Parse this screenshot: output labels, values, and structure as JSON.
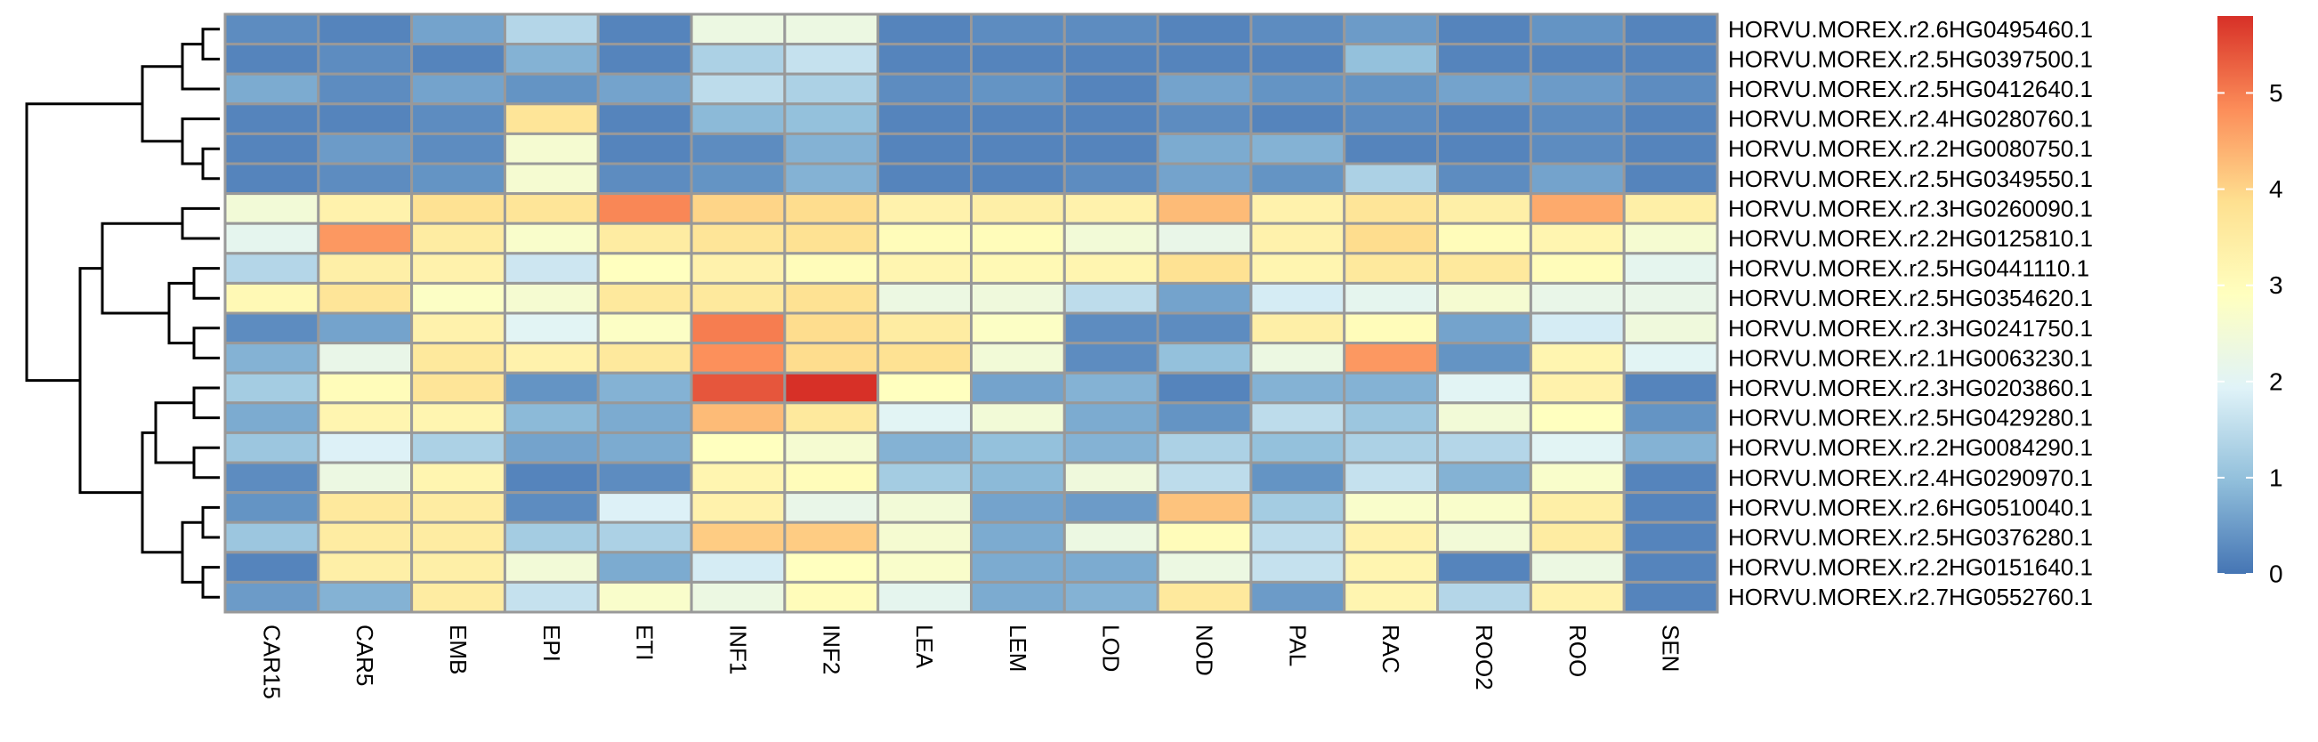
{
  "chart_data": {
    "type": "heatmap",
    "columns": [
      "CAR15",
      "CAR5",
      "EMB",
      "EPI",
      "ETI",
      "INF1",
      "INF2",
      "LEA",
      "LEM",
      "LOD",
      "NOD",
      "PAL",
      "RAC",
      "ROO2",
      "ROO",
      "SEN"
    ],
    "rows": [
      "HORVU.MOREX.r2.6HG0495460.1",
      "HORVU.MOREX.r2.5HG0397500.1",
      "HORVU.MOREX.r2.5HG0412640.1",
      "HORVU.MOREX.r2.4HG0280760.1",
      "HORVU.MOREX.r2.2HG0080750.1",
      "HORVU.MOREX.r2.5HG0349550.1",
      "HORVU.MOREX.r2.3HG0260090.1",
      "HORVU.MOREX.r2.2HG0125810.1",
      "HORVU.MOREX.r2.5HG0441110.1",
      "HORVU.MOREX.r2.5HG0354620.1",
      "HORVU.MOREX.r2.3HG0241750.1",
      "HORVU.MOREX.r2.1HG0063230.1",
      "HORVU.MOREX.r2.3HG0203860.1",
      "HORVU.MOREX.r2.5HG0429280.1",
      "HORVU.MOREX.r2.2HG0084290.1",
      "HORVU.MOREX.r2.4HG0290970.1",
      "HORVU.MOREX.r2.6HG0510040.1",
      "HORVU.MOREX.r2.5HG0376280.1",
      "HORVU.MOREX.r2.2HG0151640.1",
      "HORVU.MOREX.r2.7HG0552760.1"
    ],
    "values": [
      [
        0.3,
        0.2,
        0.6,
        1.4,
        0.2,
        2.3,
        2.3,
        0.2,
        0.3,
        0.3,
        0.2,
        0.3,
        0.5,
        0.2,
        0.4,
        0.2
      ],
      [
        0.2,
        0.3,
        0.2,
        0.8,
        0.2,
        1.3,
        1.6,
        0.2,
        0.2,
        0.2,
        0.2,
        0.2,
        1.0,
        0.2,
        0.2,
        0.2
      ],
      [
        0.7,
        0.3,
        0.6,
        0.4,
        0.6,
        1.5,
        1.3,
        0.3,
        0.4,
        0.2,
        0.6,
        0.4,
        0.4,
        0.6,
        0.5,
        0.3
      ],
      [
        0.2,
        0.2,
        0.3,
        3.7,
        0.2,
        0.9,
        1.0,
        0.2,
        0.2,
        0.2,
        0.3,
        0.2,
        0.3,
        0.2,
        0.3,
        0.2
      ],
      [
        0.2,
        0.5,
        0.3,
        2.6,
        0.2,
        0.3,
        0.8,
        0.2,
        0.2,
        0.2,
        0.7,
        0.8,
        0.2,
        0.2,
        0.3,
        0.2
      ],
      [
        0.2,
        0.3,
        0.4,
        2.6,
        0.3,
        0.4,
        0.8,
        0.2,
        0.2,
        0.3,
        0.6,
        0.4,
        1.3,
        0.3,
        0.6,
        0.2
      ],
      [
        2.5,
        3.3,
        3.8,
        3.7,
        4.9,
        4.0,
        3.9,
        3.3,
        3.4,
        3.3,
        4.3,
        3.3,
        3.7,
        3.4,
        4.5,
        3.4
      ],
      [
        2.1,
        4.7,
        3.5,
        2.7,
        3.5,
        3.7,
        3.8,
        3.0,
        3.0,
        2.5,
        2.2,
        3.3,
        3.9,
        3.0,
        3.2,
        2.6
      ],
      [
        1.4,
        3.4,
        3.3,
        1.7,
        2.9,
        3.3,
        3.0,
        3.2,
        3.1,
        3.2,
        3.8,
        3.2,
        3.6,
        3.6,
        3.0,
        2.1
      ],
      [
        3.1,
        3.7,
        2.8,
        2.6,
        3.6,
        3.6,
        3.8,
        2.3,
        2.4,
        1.5,
        0.6,
        1.8,
        2.1,
        2.6,
        2.2,
        2.2
      ],
      [
        0.3,
        0.6,
        3.3,
        2.0,
        2.8,
        5.0,
        3.9,
        3.5,
        2.8,
        0.3,
        0.3,
        3.4,
        3.0,
        0.6,
        1.8,
        2.4
      ],
      [
        0.8,
        2.2,
        3.6,
        3.3,
        3.6,
        4.8,
        3.9,
        3.8,
        2.5,
        0.3,
        1.0,
        2.3,
        4.7,
        0.4,
        3.2,
        2.0
      ],
      [
        1.2,
        3.0,
        3.7,
        0.4,
        0.8,
        5.4,
        5.8,
        2.9,
        0.6,
        0.8,
        0.2,
        0.8,
        0.8,
        2.0,
        3.3,
        0.2
      ],
      [
        0.7,
        3.2,
        3.2,
        0.9,
        0.7,
        4.3,
        3.6,
        2.0,
        2.5,
        0.7,
        0.4,
        1.5,
        1.1,
        2.5,
        2.9,
        0.4
      ],
      [
        1.1,
        1.9,
        1.3,
        0.6,
        0.7,
        2.9,
        2.6,
        0.8,
        1.0,
        0.8,
        1.3,
        1.0,
        1.3,
        1.4,
        2.0,
        0.8
      ],
      [
        0.3,
        2.3,
        3.2,
        0.2,
        0.3,
        3.2,
        3.0,
        1.2,
        0.9,
        2.4,
        1.5,
        0.4,
        1.6,
        0.8,
        2.7,
        0.2
      ],
      [
        0.4,
        3.6,
        3.5,
        0.3,
        1.9,
        3.3,
        2.2,
        2.5,
        0.6,
        0.5,
        4.2,
        1.2,
        2.7,
        2.7,
        3.4,
        0.2
      ],
      [
        1.1,
        3.5,
        3.5,
        1.2,
        1.3,
        4.1,
        4.1,
        2.6,
        0.7,
        2.3,
        3.0,
        1.5,
        3.3,
        2.5,
        3.5,
        0.2
      ],
      [
        0.2,
        3.4,
        3.4,
        2.5,
        0.7,
        1.8,
        2.9,
        2.7,
        0.7,
        0.7,
        2.3,
        1.6,
        3.2,
        0.2,
        2.3,
        0.2
      ],
      [
        0.5,
        0.8,
        3.5,
        1.6,
        2.7,
        2.3,
        3.0,
        2.1,
        0.7,
        0.8,
        3.6,
        0.5,
        3.2,
        1.4,
        3.3,
        0.2
      ]
    ],
    "colorbar": {
      "min": 0,
      "max": 5.8,
      "ticks": [
        "0",
        "1",
        "2",
        "3",
        "4",
        "5"
      ],
      "colors": [
        "#4575b4",
        "#91bfdb",
        "#e0f3f8",
        "#ffffbf",
        "#fee090",
        "#fc8d59",
        "#d73027"
      ]
    },
    "cell_border_color": "#999999",
    "row_dendrogram": true,
    "legend_position": "right"
  }
}
